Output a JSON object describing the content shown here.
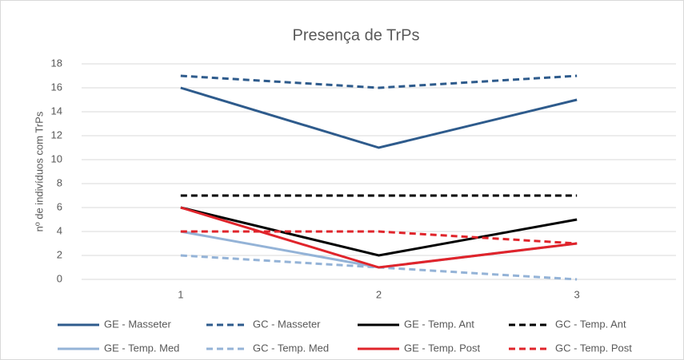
{
  "chart_data": {
    "type": "line",
    "title": "Presença de TrPs",
    "y_label": "nº de indivíduos com TrPs",
    "categories": [
      "1",
      "2",
      "3"
    ],
    "ylim": [
      0,
      18
    ],
    "yticks": [
      0,
      2,
      4,
      6,
      8,
      10,
      12,
      14,
      16,
      18
    ],
    "grid": true,
    "legend": "bottom",
    "series": [
      {
        "name": "GE - Masseter",
        "color": "#2e5b8c",
        "dashed": false,
        "values": [
          16,
          11,
          15
        ]
      },
      {
        "name": "GC - Masseter",
        "color": "#2e5b8c",
        "dashed": true,
        "values": [
          17,
          16,
          17
        ]
      },
      {
        "name": "GE - Temp. Ant",
        "color": "#000000",
        "dashed": false,
        "values": [
          6,
          2,
          5
        ]
      },
      {
        "name": "GC - Temp. Ant",
        "color": "#000000",
        "dashed": true,
        "values": [
          7,
          7,
          7
        ]
      },
      {
        "name": "GE - Temp. Med",
        "color": "#94b3d7",
        "dashed": false,
        "values": [
          4,
          1,
          3
        ]
      },
      {
        "name": "GC - Temp. Med",
        "color": "#94b3d7",
        "dashed": true,
        "values": [
          2,
          1,
          0
        ]
      },
      {
        "name": "GE - Temp. Post",
        "color": "#e0242b",
        "dashed": false,
        "values": [
          6,
          1,
          3
        ]
      },
      {
        "name": "GC - Temp. Post",
        "color": "#e0242b",
        "dashed": true,
        "values": [
          4,
          4,
          3
        ]
      }
    ]
  }
}
